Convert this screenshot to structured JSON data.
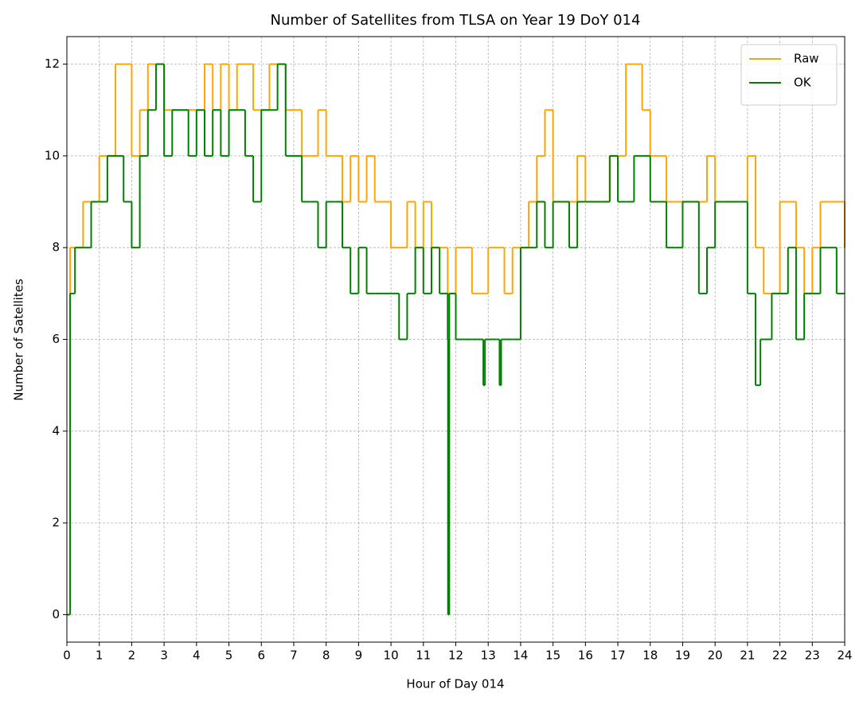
{
  "chart_data": {
    "type": "step",
    "title": "Number of Satellites from TLSA on Year 19 DoY 014",
    "x_label": "Hour of Day 014",
    "y_label": "Number of Satellites",
    "x": [
      0,
      0.1,
      0.25,
      0.5,
      0.75,
      1,
      1.25,
      1.5,
      1.75,
      2,
      2.25,
      2.5,
      2.75,
      3,
      3.25,
      3.5,
      3.75,
      4,
      4.25,
      4.5,
      4.75,
      5,
      5.25,
      5.5,
      5.75,
      6,
      6.25,
      6.5,
      6.75,
      7,
      7.25,
      7.5,
      7.75,
      8,
      8.25,
      8.5,
      8.75,
      9,
      9.25,
      9.5,
      9.75,
      10,
      10.25,
      10.5,
      10.75,
      11,
      11.25,
      11.5,
      11.75,
      11.76,
      11.8,
      12,
      12.25,
      12.5,
      12.75,
      12.85,
      12.9,
      13,
      13.25,
      13.35,
      13.4,
      13.5,
      13.75,
      14,
      14.25,
      14.5,
      14.75,
      15,
      15.25,
      15.5,
      15.75,
      16,
      16.25,
      16.5,
      16.75,
      17,
      17.25,
      17.5,
      17.75,
      18,
      18.25,
      18.5,
      18.75,
      19,
      19.25,
      19.5,
      19.75,
      20,
      20.25,
      20.5,
      20.75,
      21,
      21.25,
      21.4,
      21.5,
      21.75,
      22,
      22.25,
      22.5,
      22.75,
      23,
      23.25,
      23.5,
      23.75,
      24
    ],
    "series": [
      {
        "name": "Raw",
        "color": "#ffa500",
        "values": [
          0,
          8,
          8,
          9,
          9,
          10,
          10,
          12,
          12,
          10,
          11,
          12,
          12,
          11,
          11,
          11,
          11,
          11,
          12,
          11,
          12,
          11,
          12,
          12,
          11,
          11,
          12,
          12,
          11,
          11,
          10,
          10,
          11,
          10,
          10,
          9,
          10,
          9,
          10,
          9,
          9,
          8,
          8,
          9,
          8,
          9,
          8,
          8,
          7,
          7,
          7,
          8,
          8,
          7,
          7,
          7,
          7,
          8,
          8,
          8,
          8,
          7,
          8,
          8,
          9,
          10,
          11,
          9,
          9,
          9,
          10,
          9,
          9,
          9,
          10,
          10,
          12,
          12,
          11,
          10,
          10,
          9,
          9,
          9,
          9,
          9,
          10,
          9,
          9,
          9,
          9,
          10,
          8,
          8,
          7,
          7,
          9,
          9,
          8,
          7,
          8,
          9,
          9,
          9,
          8
        ]
      },
      {
        "name": "OK",
        "color": "#008000",
        "values": [
          0,
          7,
          8,
          8,
          9,
          9,
          10,
          10,
          9,
          8,
          10,
          11,
          12,
          10,
          11,
          11,
          10,
          11,
          10,
          11,
          10,
          11,
          11,
          10,
          9,
          11,
          11,
          12,
          10,
          10,
          9,
          9,
          8,
          9,
          9,
          8,
          7,
          8,
          7,
          7,
          7,
          7,
          6,
          7,
          8,
          7,
          8,
          7,
          6,
          0,
          7,
          6,
          6,
          6,
          6,
          5,
          6,
          6,
          6,
          5,
          6,
          6,
          6,
          8,
          8,
          9,
          8,
          9,
          9,
          8,
          9,
          9,
          9,
          9,
          10,
          9,
          9,
          10,
          10,
          9,
          9,
          8,
          8,
          9,
          9,
          7,
          8,
          9,
          9,
          9,
          9,
          7,
          5,
          6,
          6,
          7,
          7,
          8,
          6,
          7,
          7,
          8,
          8,
          7,
          7
        ]
      }
    ],
    "xlim": [
      0,
      24
    ],
    "xticks": [
      0,
      1,
      2,
      3,
      4,
      5,
      6,
      7,
      8,
      9,
      10,
      11,
      12,
      13,
      14,
      15,
      16,
      17,
      18,
      19,
      20,
      21,
      22,
      23,
      24
    ],
    "ylim": [
      -0.6,
      12.6
    ],
    "yticks": [
      0,
      2,
      4,
      6,
      8,
      10,
      12
    ],
    "grid": true,
    "legend": "upper right"
  }
}
